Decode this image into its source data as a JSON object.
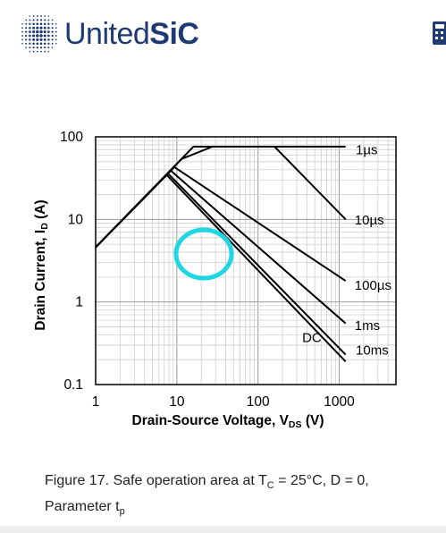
{
  "header": {
    "logo_text_regular": "United",
    "logo_text_bold": "SiC",
    "brand_color": "#1f3a73",
    "icons": [
      "united-sic-logo-icon",
      "calculator-icon"
    ]
  },
  "caption": {
    "prefix": "Figure 17. Safe operation area at T",
    "tc_sub": "C",
    "middle": " = 25°C, D = 0,",
    "line2": "Parameter t",
    "tp_sub": "p"
  },
  "annotation": {
    "shape": "circle",
    "color": "#1fd6e4"
  },
  "chart_data": {
    "type": "line",
    "title": "",
    "xlabel_main": "Drain-Source Voltage, V",
    "xlabel_sub": "DS",
    "xlabel_unit": " (V)",
    "ylabel_main": "Drain Current, I",
    "ylabel_sub": "D",
    "ylabel_unit": " (A)",
    "x_scale": "log",
    "y_scale": "log",
    "xlim": [
      1,
      5000
    ],
    "ylim": [
      0.1,
      100
    ],
    "x_ticks": [
      {
        "value": 1,
        "label": "1"
      },
      {
        "value": 10,
        "label": "10"
      },
      {
        "value": 100,
        "label": "100"
      },
      {
        "value": 1000,
        "label": "1000"
      }
    ],
    "y_ticks": [
      {
        "value": 0.1,
        "label": "0.1"
      },
      {
        "value": 1,
        "label": "1"
      },
      {
        "value": 10,
        "label": "10"
      },
      {
        "value": 100,
        "label": "100"
      }
    ],
    "grid": true,
    "series": [
      {
        "name": "1µs",
        "points": [
          [
            1,
            4.6
          ],
          [
            16,
            76
          ],
          [
            1200,
            76
          ]
        ]
      },
      {
        "name": "10µs",
        "points": [
          [
            1,
            4.6
          ],
          [
            11.5,
            54
          ],
          [
            27.5,
            76
          ],
          [
            160,
            76
          ],
          [
            1200,
            10
          ]
        ]
      },
      {
        "name": "100µs",
        "points": [
          [
            1,
            4.6
          ],
          [
            9.3,
            43
          ],
          [
            1200,
            1.8
          ]
        ]
      },
      {
        "name": "1ms",
        "points": [
          [
            1,
            4.6
          ],
          [
            8.4,
            39
          ],
          [
            1200,
            0.55
          ]
        ]
      },
      {
        "name": "DC",
        "points": [
          [
            1,
            4.6
          ],
          [
            7.8,
            36
          ],
          [
            1200,
            0.23
          ]
        ]
      },
      {
        "name": "10ms",
        "points": [
          [
            1,
            4.6
          ],
          [
            7.5,
            34.5
          ],
          [
            1200,
            0.19
          ]
        ]
      }
    ],
    "curve_labels": [
      {
        "text": "1µs",
        "x": 1600,
        "y": 70
      },
      {
        "text": "10µs",
        "x": 1550,
        "y": 9.8
      },
      {
        "text": "100µs",
        "x": 1550,
        "y": 1.6
      },
      {
        "text": "1ms",
        "x": 1550,
        "y": 0.52
      },
      {
        "text": "DC",
        "x": 350,
        "y": 0.37
      },
      {
        "text": "10ms",
        "x": 1600,
        "y": 0.26
      }
    ]
  }
}
